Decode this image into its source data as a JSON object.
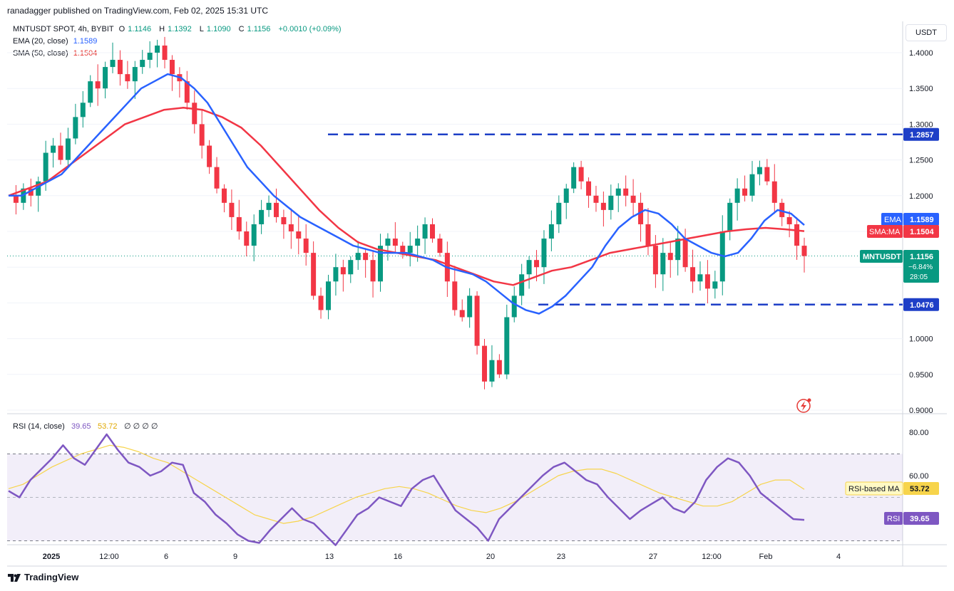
{
  "header": {
    "publish_text": "ranadagger published on TradingView.com, Feb 02, 2025 15:31 UTC"
  },
  "legend": {
    "symbol": "MNTUSDT SPOT, 4h, BYBIT",
    "o": "O",
    "o_val": "1.1146",
    "h": "H",
    "h_val": "1.1392",
    "l": "L",
    "l_val": "1.1090",
    "c": "C",
    "c_val": "1.1156",
    "change": "+0.0010 (+0.09%)",
    "ema_label": "EMA (20, close)",
    "ema_val": "1.1589",
    "sma_label": "SMA (50, close)",
    "sma_val": "1.1504"
  },
  "currency_button": "USDT",
  "price_axis": {
    "ticks": [
      "1.4000",
      "1.3500",
      "1.3000",
      "1.2500",
      "1.2000",
      "1.1500",
      "1.1000",
      "1.0500",
      "1.0000",
      "0.9500",
      "0.9000"
    ]
  },
  "badges": {
    "resistance": "1.2857",
    "support": "1.0476",
    "ema_tag": "EMA",
    "ema_value": "1.1589",
    "sma_tag": "SMA:MA",
    "sma_value": "1.1504",
    "symbol_tag": "MNTUSDT",
    "symbol_value": "1.1156",
    "symbol_change": "−6.84%",
    "countdown": "28:05"
  },
  "rsi": {
    "label": "RSI (14, close)",
    "val1": "39.65",
    "val2": "53.72",
    "extra": "∅ ∅ ∅ ∅",
    "ticks": [
      "80.00",
      "60.00"
    ],
    "ma_tag": "RSI-based MA",
    "ma_value": "53.72",
    "rsi_tag": "RSI",
    "rsi_value": "39.65"
  },
  "time_axis": {
    "ticks": [
      "2025",
      "12:00",
      "6",
      "9",
      "13",
      "16",
      "20",
      "23",
      "27",
      "12:00",
      "Feb",
      "4"
    ]
  },
  "footer": {
    "brand": "TradingView"
  },
  "colors": {
    "up": "#089981",
    "down": "#f23645",
    "ema": "#2962ff",
    "sma": "#f23645",
    "rsi": "#7e57c2",
    "rsi_ma": "#f7d44b",
    "level": "#1e3fc7"
  },
  "chart_data": {
    "type": "candlestick",
    "title": "MNTUSDT SPOT, 4h, BYBIT",
    "ylim": [
      0.9,
      1.42
    ],
    "levels": [
      1.2857,
      1.0476
    ],
    "last_close": 1.1156,
    "x_labels": [
      "2025",
      "12:00",
      "6",
      "9",
      "13",
      "16",
      "20",
      "23",
      "27",
      "12:00",
      "Feb",
      "4"
    ],
    "close_series": [
      1.2,
      1.19,
      1.21,
      1.2,
      1.22,
      1.26,
      1.27,
      1.25,
      1.28,
      1.31,
      1.33,
      1.36,
      1.35,
      1.38,
      1.39,
      1.37,
      1.36,
      1.38,
      1.39,
      1.4,
      1.41,
      1.39,
      1.37,
      1.36,
      1.33,
      1.3,
      1.27,
      1.24,
      1.21,
      1.19,
      1.17,
      1.15,
      1.13,
      1.16,
      1.18,
      1.19,
      1.17,
      1.16,
      1.15,
      1.14,
      1.12,
      1.06,
      1.04,
      1.08,
      1.1,
      1.09,
      1.11,
      1.12,
      1.11,
      1.08,
      1.13,
      1.14,
      1.13,
      1.12,
      1.13,
      1.14,
      1.16,
      1.14,
      1.12,
      1.08,
      1.04,
      1.03,
      1.06,
      0.99,
      0.94,
      0.97,
      0.95,
      1.03,
      1.06,
      1.09,
      1.11,
      1.1,
      1.14,
      1.16,
      1.19,
      1.21,
      1.24,
      1.22,
      1.2,
      1.19,
      1.18,
      1.2,
      1.21,
      1.2,
      1.19,
      1.16,
      1.13,
      1.09,
      1.12,
      1.11,
      1.14,
      1.1,
      1.08,
      1.09,
      1.07,
      1.08,
      1.15,
      1.19,
      1.21,
      1.2,
      1.23,
      1.24,
      1.22,
      1.19,
      1.17,
      1.16,
      1.13,
      1.1156
    ],
    "ema20": [
      1.2,
      1.2,
      1.21,
      1.22,
      1.23,
      1.25,
      1.27,
      1.29,
      1.31,
      1.33,
      1.35,
      1.36,
      1.37,
      1.365,
      1.35,
      1.33,
      1.3,
      1.27,
      1.24,
      1.22,
      1.2,
      1.185,
      1.17,
      1.16,
      1.15,
      1.14,
      1.13,
      1.125,
      1.12,
      1.12,
      1.12,
      1.115,
      1.11,
      1.1,
      1.095,
      1.09,
      1.08,
      1.065,
      1.05,
      1.04,
      1.035,
      1.045,
      1.06,
      1.08,
      1.1,
      1.13,
      1.155,
      1.17,
      1.18,
      1.175,
      1.16,
      1.14,
      1.13,
      1.12,
      1.115,
      1.12,
      1.14,
      1.165,
      1.18,
      1.175,
      1.1589
    ],
    "sma50": [
      1.2,
      1.21,
      1.22,
      1.24,
      1.26,
      1.28,
      1.3,
      1.31,
      1.32,
      1.323,
      1.32,
      1.31,
      1.295,
      1.27,
      1.24,
      1.21,
      1.18,
      1.155,
      1.135,
      1.125,
      1.12,
      1.115,
      1.11,
      1.1,
      1.09,
      1.08,
      1.075,
      1.085,
      1.095,
      1.1,
      1.11,
      1.12,
      1.125,
      1.13,
      1.135,
      1.14,
      1.145,
      1.15,
      1.153,
      1.155,
      1.153,
      1.1504
    ],
    "rsi14": [
      53,
      50,
      58,
      63,
      68,
      74,
      68,
      65,
      72,
      79,
      72,
      66,
      64,
      60,
      62,
      66,
      65,
      52,
      48,
      42,
      38,
      33,
      30,
      29,
      35,
      40,
      45,
      40,
      38,
      33,
      28,
      35,
      42,
      45,
      50,
      48,
      46,
      54,
      58,
      60,
      52,
      44,
      40,
      36,
      30,
      40,
      45,
      50,
      55,
      60,
      64,
      66,
      62,
      58,
      56,
      50,
      45,
      40,
      44,
      47,
      50,
      45,
      43,
      48,
      58,
      64,
      68,
      66,
      60,
      52,
      48,
      44,
      40,
      39.65
    ],
    "rsi_ma": [
      54,
      56,
      60,
      64,
      67,
      70,
      72,
      74,
      73,
      71,
      68,
      66,
      62,
      58,
      54,
      50,
      46,
      42,
      40,
      38,
      39,
      41,
      44,
      47,
      50,
      52,
      54,
      55,
      54,
      52,
      49,
      46,
      44,
      43,
      45,
      48,
      52,
      56,
      60,
      62,
      63,
      63,
      61,
      58,
      55,
      52,
      50,
      48,
      46,
      46,
      48,
      52,
      56,
      58,
      58,
      53.72
    ],
    "rsi_ticks": [
      80,
      60
    ],
    "rsi_band": [
      70,
      30
    ]
  }
}
